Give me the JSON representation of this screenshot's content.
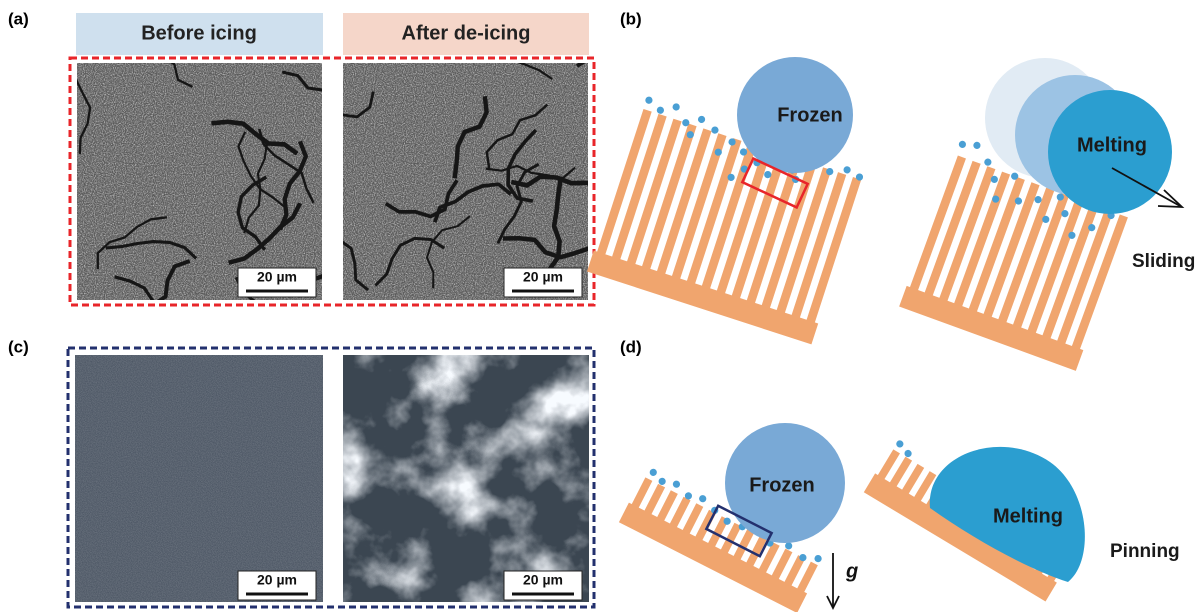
{
  "panels": {
    "a": {
      "label": "(a)",
      "headers": [
        "Before icing",
        "After de-icing"
      ],
      "scale_bars": [
        "20 µm",
        "20 µm"
      ]
    },
    "b": {
      "label": "(b)",
      "droplet_labels": [
        "Frozen",
        "Melting"
      ],
      "motion": "Sliding"
    },
    "c": {
      "label": "(c)",
      "scale_bars": [
        "20 µm",
        "20 µm"
      ]
    },
    "d": {
      "label": "(d)",
      "droplet_labels": [
        "Frozen",
        "Melting"
      ],
      "motion": "Pinning",
      "gravity": "g"
    }
  }
}
